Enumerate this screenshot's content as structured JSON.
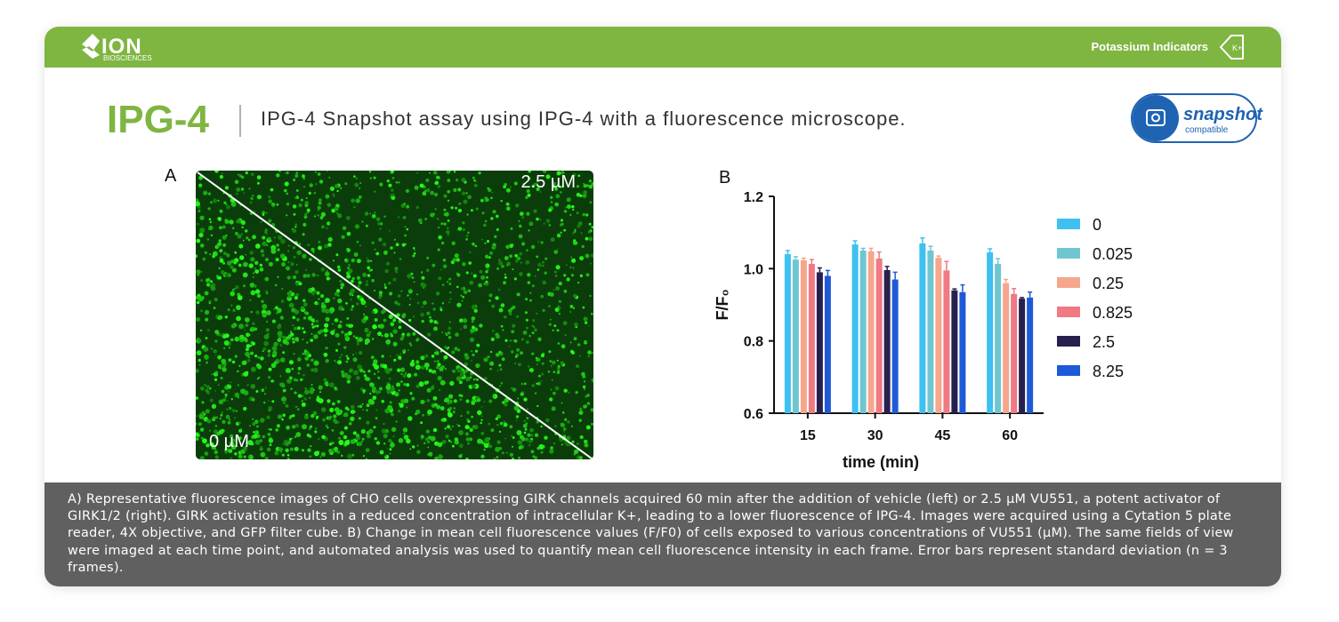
{
  "header": {
    "logo": "ION",
    "logo_sub": "BIOSCIENCES",
    "section": "Potassium Indicators",
    "icon_label": "K+"
  },
  "title": {
    "product": "IPG-4",
    "subtitle": "IPG-4 Snapshot assay using IPG-4 with a fluorescence microscope."
  },
  "badge": {
    "main": "snapshot",
    "sub": "compatible"
  },
  "panel_a": {
    "label": "A",
    "top_right": "2.5 µM",
    "bottom_left": "0 µM"
  },
  "chart_data": {
    "type": "bar",
    "panel_label": "B",
    "y_label": "F/F₀",
    "x_label": "time (min)",
    "categories": [
      "15",
      "30",
      "45",
      "60"
    ],
    "ylim": [
      0.6,
      1.2
    ],
    "yticks": [
      0.6,
      0.8,
      {
        "value": 1,
        "label": "1.0"
      },
      1.2
    ],
    "series": [
      {
        "name": "0",
        "color": "#3ec0f0",
        "values": [
          1.04,
          1.067,
          1.07,
          1.045
        ],
        "errors": [
          0.01,
          0.01,
          0.015,
          0.01
        ]
      },
      {
        "name": "0.025",
        "color": "#6fc6d0",
        "values": [
          1.025,
          1.05,
          1.05,
          1.013
        ],
        "errors": [
          0.008,
          0.006,
          0.012,
          0.015
        ]
      },
      {
        "name": "0.25",
        "color": "#f5a68c",
        "values": [
          1.023,
          1.048,
          1.03,
          0.96
        ],
        "errors": [
          0.006,
          0.008,
          0.005,
          0.01
        ]
      },
      {
        "name": "0.825",
        "color": "#f07984",
        "values": [
          1.013,
          1.028,
          0.995,
          0.93
        ],
        "errors": [
          0.012,
          0.018,
          0.025,
          0.015
        ]
      },
      {
        "name": "2.5",
        "color": "#27204f",
        "values": [
          0.99,
          0.996,
          0.94,
          0.917
        ],
        "errors": [
          0.012,
          0.01,
          0.004,
          0.003
        ]
      },
      {
        "name": "8.25",
        "color": "#1e5ad8",
        "values": [
          0.98,
          0.97,
          0.935,
          0.92
        ],
        "errors": [
          0.015,
          0.02,
          0.02,
          0.015
        ]
      }
    ]
  },
  "caption": "A) Representative fluorescence images of CHO cells overexpressing GIRK channels acquired 60 min after the addition of vehicle (left) or 2.5 µM VU551, a potent activator of GIRK1/2 (right). GIRK activation results in a reduced concentration of intracellular K+, leading to a lower fluorescence of IPG-4. Images were acquired using a Cytation 5 plate reader, 4X objective, and GFP filter cube. B) Change in mean cell fluorescence values (F/F0) of cells exposed to various concentrations of VU551 (µM). The same fields of view were imaged at each time point, and automated analysis was used to quantify mean cell fluorescence intensity in each frame. Error bars represent standard deviation (n = 3 frames)."
}
